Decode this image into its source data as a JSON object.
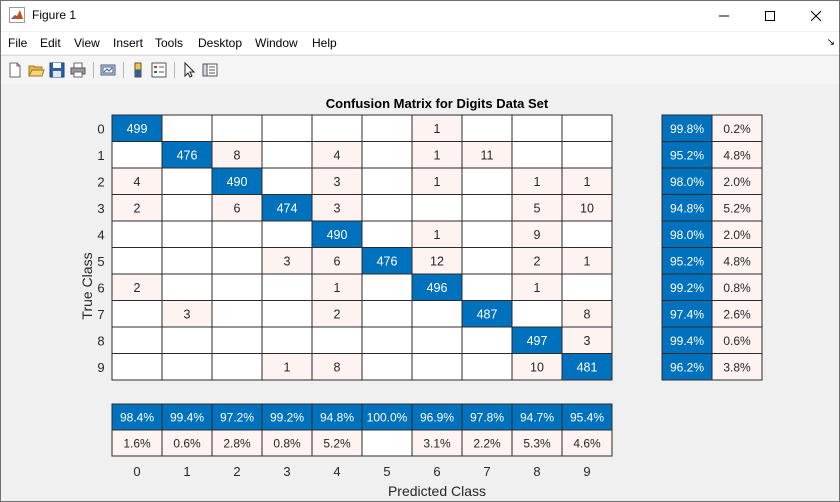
{
  "window": {
    "title": "Figure 1",
    "icons": [
      "matlab-logo-icon",
      "minimize-icon",
      "maximize-icon",
      "close-icon"
    ]
  },
  "menubar": {
    "items": [
      "File",
      "Edit",
      "View",
      "Insert",
      "Tools",
      "Desktop",
      "Window",
      "Help"
    ],
    "dock_arrow": "↘"
  },
  "toolbar": {
    "tools": [
      "new-figure-icon",
      "open-file-icon",
      "save-icon",
      "print-icon",
      "link-plot-icon",
      "insert-colorbar-icon",
      "insert-legend-icon",
      "edit-plot-icon",
      "property-inspector-icon"
    ]
  },
  "chart_data": {
    "type": "heatmap",
    "title": "Confusion Matrix for Digits Data Set",
    "xlabel": "Predicted Class",
    "ylabel": "True Class",
    "true_classes": [
      "0",
      "1",
      "2",
      "3",
      "4",
      "5",
      "6",
      "7",
      "8",
      "9"
    ],
    "predicted_classes": [
      "0",
      "1",
      "2",
      "3",
      "4",
      "5",
      "6",
      "7",
      "8",
      "9"
    ],
    "matrix": [
      [
        499,
        0,
        0,
        0,
        0,
        0,
        1,
        0,
        0,
        0
      ],
      [
        0,
        476,
        8,
        0,
        4,
        0,
        1,
        11,
        0,
        0
      ],
      [
        4,
        0,
        490,
        0,
        3,
        0,
        1,
        0,
        1,
        1
      ],
      [
        2,
        0,
        6,
        474,
        3,
        0,
        0,
        0,
        5,
        10
      ],
      [
        0,
        0,
        0,
        0,
        490,
        0,
        1,
        0,
        9,
        0
      ],
      [
        0,
        0,
        0,
        3,
        6,
        476,
        12,
        0,
        2,
        1
      ],
      [
        2,
        0,
        0,
        0,
        1,
        0,
        496,
        0,
        1,
        0
      ],
      [
        0,
        3,
        0,
        0,
        2,
        0,
        0,
        487,
        0,
        8
      ],
      [
        0,
        0,
        0,
        0,
        0,
        0,
        0,
        0,
        497,
        3
      ],
      [
        0,
        0,
        0,
        1,
        8,
        0,
        0,
        0,
        10,
        481
      ]
    ],
    "row_summary": {
      "correct": [
        "99.8%",
        "95.2%",
        "98.0%",
        "94.8%",
        "98.0%",
        "95.2%",
        "99.2%",
        "97.4%",
        "99.4%",
        "96.2%"
      ],
      "incorrect": [
        "0.2%",
        "4.8%",
        "2.0%",
        "5.2%",
        "2.0%",
        "4.8%",
        "0.8%",
        "2.6%",
        "0.6%",
        "3.8%"
      ]
    },
    "column_summary": {
      "correct": [
        "98.4%",
        "99.4%",
        "97.2%",
        "99.2%",
        "94.8%",
        "100.0%",
        "96.9%",
        "97.8%",
        "94.7%",
        "95.4%"
      ],
      "incorrect": [
        "1.6%",
        "0.6%",
        "2.8%",
        "0.8%",
        "5.2%",
        "",
        "3.1%",
        "2.2%",
        "5.3%",
        "4.6%"
      ]
    },
    "colors": {
      "diagonal": "#0072bd",
      "off_diagonal": "#fdf3f1",
      "empty": "#ffffff",
      "grid": "#2b2b2b",
      "background": "#f0f0f0"
    }
  }
}
